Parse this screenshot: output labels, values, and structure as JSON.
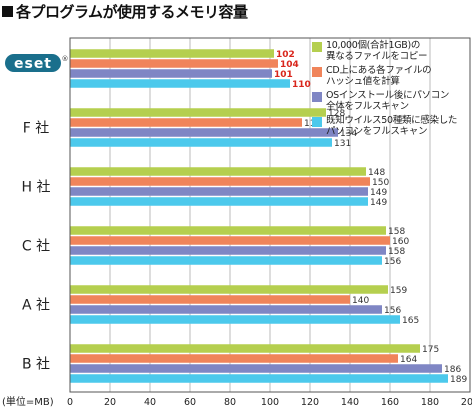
{
  "title": "各プログラムが使用するメモリ容量",
  "unit_label": "(単位=MB)",
  "logo_text": "eset",
  "logo_reg": "®",
  "colors": {
    "s1": "#b5cf4f",
    "s2": "#f0845a",
    "s3": "#7f86c4",
    "s4": "#4cc9ec",
    "grid": "#bbbbbb",
    "eset_value": "#d9261c",
    "logo_bg": "#1a6f8c"
  },
  "chart_data": {
    "type": "bar",
    "orientation": "horizontal",
    "categories": [
      "ESET",
      "F 社",
      "H 社",
      "C 社",
      "A 社",
      "B 社"
    ],
    "category_display": [
      "",
      "F 社",
      "H 社",
      "C 社",
      "A 社",
      "B 社"
    ],
    "series": [
      {
        "name": "10,000個(合計1GB)の異なるファイルをコピー",
        "values": [
          102,
          128,
          148,
          158,
          159,
          175
        ]
      },
      {
        "name": "CD上にある各ファイルのハッシュ値を計算",
        "values": [
          104,
          116,
          150,
          160,
          140,
          164
        ]
      },
      {
        "name": "OSインストール後にパソコン全体をフルスキャン",
        "values": [
          101,
          134,
          149,
          158,
          156,
          186
        ]
      },
      {
        "name": "既知ウイルス50種類に感染したパソコンをフルスキャン",
        "values": [
          110,
          131,
          149,
          156,
          165,
          189
        ]
      }
    ],
    "legend_lines": [
      [
        "10,000個(合計1GB)の",
        "異なるファイルをコピー"
      ],
      [
        "CD上にある各ファイルの",
        "ハッシュ値を計算"
      ],
      [
        "OSインストール後にパソコン",
        "全体をフルスキャン"
      ],
      [
        "既知ウイルス50種類に感染した",
        "パソコンをフルスキャン"
      ]
    ],
    "xlim": [
      0,
      200
    ],
    "xticks": [
      0,
      20,
      40,
      60,
      80,
      100,
      120,
      140,
      160,
      180,
      200
    ],
    "legend_position": "top-right",
    "grid": true
  }
}
